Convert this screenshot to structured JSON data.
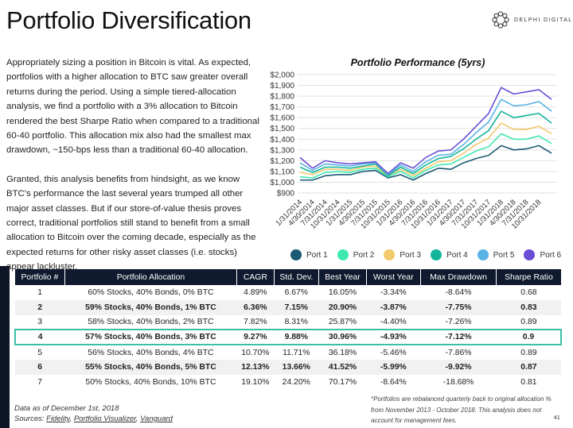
{
  "title": "Portfolio Diversification",
  "logo": {
    "text": "DELPHI DIGITAL"
  },
  "body": {
    "p1": "Appropriately sizing a position in Bitcoin is vital. As expected, portfolios with a higher allocation to BTC saw greater overall returns during the period. Using a simple tiered-allocation analysis, we find a portfolio with a 3% allocation to Bitcoin rendered the best Sharpe Ratio when compared to a traditional 60-40 portfolio. This allocation mix also had the smallest max drawdown, ~150-bps less than a traditional 60-40 allocation.",
    "p2": "Granted, this analysis benefits from hindsight, as we know BTC's performance the last several years trumped all other major asset classes. But if our store-of-value thesis proves correct, traditional portfolios still stand to benefit from a small allocation to Bitcoin over the coming decade, especially as the expected returns for other risky asset classes (i.e. stocks) appear lackluster."
  },
  "chart_data": {
    "type": "line",
    "title": "Portfolio Performance (5yrs)",
    "ylim": [
      900,
      2000
    ],
    "yticks": [
      "$2,000",
      "$1,900",
      "$1,800",
      "$1,700",
      "$1,600",
      "$1,500",
      "$1,400",
      "$1,300",
      "$1,200",
      "$1,100",
      "$1,000",
      "$900"
    ],
    "ytick_values": [
      2000,
      1900,
      1800,
      1700,
      1600,
      1500,
      1400,
      1300,
      1200,
      1100,
      1000,
      900
    ],
    "grid": true,
    "legend": "bottom",
    "x": [
      "1/31/2014",
      "4/30/2014",
      "7/31/2014",
      "10/31/2014",
      "1/31/2015",
      "4/30/2015",
      "7/31/2015",
      "10/31/2015",
      "1/31/2016",
      "4/30/2016",
      "7/31/2016",
      "10/31/2016",
      "1/31/2017",
      "4/30/2017",
      "7/31/2017",
      "10/31/2017",
      "1/31/2018",
      "4/30/2018",
      "7/31/2018",
      "10/31/2018",
      "11/30/2018"
    ],
    "xtick_labels": [
      "1/31/2014",
      "4/30/2014",
      "7/31/2014",
      "10/31/2014",
      "1/31/2015",
      "4/30/2015",
      "7/31/2015",
      "10/31/2015",
      "1/31/2016",
      "4/30/2016",
      "7/31/2016",
      "10/31/2016",
      "1/31/2017",
      "4/30/2017",
      "7/31/2017",
      "10/31/2017",
      "1/31/2018",
      "4/30/2018",
      "7/31/2018",
      "10/31/2018"
    ],
    "series": [
      {
        "name": "Port 1",
        "color": "#1b5a73",
        "values": [
          1020,
          1020,
          1060,
          1070,
          1070,
          1100,
          1110,
          1040,
          1070,
          1020,
          1080,
          1130,
          1120,
          1180,
          1220,
          1250,
          1340,
          1300,
          1310,
          1340,
          1270
        ]
      },
      {
        "name": "Port 2",
        "color": "#3ee8b0",
        "values": [
          1050,
          1040,
          1090,
          1100,
          1090,
          1120,
          1130,
          1050,
          1100,
          1040,
          1110,
          1160,
          1170,
          1230,
          1290,
          1330,
          1450,
          1400,
          1400,
          1430,
          1360
        ]
      },
      {
        "name": "Port 3",
        "color": "#f2c96b",
        "values": [
          1090,
          1070,
          1120,
          1120,
          1110,
          1140,
          1150,
          1060,
          1120,
          1060,
          1130,
          1190,
          1200,
          1270,
          1350,
          1410,
          1550,
          1490,
          1490,
          1520,
          1450
        ]
      },
      {
        "name": "Port 4",
        "color": "#12b59a",
        "values": [
          1140,
          1090,
          1140,
          1140,
          1130,
          1150,
          1170,
          1060,
          1140,
          1080,
          1160,
          1220,
          1240,
          1310,
          1400,
          1480,
          1660,
          1600,
          1620,
          1640,
          1550
        ]
      },
      {
        "name": "Port 5",
        "color": "#5ab3e6",
        "values": [
          1180,
          1110,
          1170,
          1160,
          1150,
          1170,
          1180,
          1070,
          1160,
          1100,
          1190,
          1250,
          1260,
          1350,
          1460,
          1560,
          1770,
          1710,
          1720,
          1750,
          1660
        ]
      },
      {
        "name": "Port 6",
        "color": "#6a4ed6",
        "values": [
          1230,
          1130,
          1200,
          1180,
          1170,
          1180,
          1190,
          1080,
          1180,
          1130,
          1230,
          1290,
          1300,
          1400,
          1520,
          1640,
          1880,
          1820,
          1840,
          1860,
          1770
        ]
      }
    ]
  },
  "table": {
    "headers": [
      "Portfolio #",
      "Portfolio Allocation",
      "CAGR",
      "Std. Dev.",
      "Best Year",
      "Worst Year",
      "Max Drawdown",
      "Sharpe Ratio"
    ],
    "rows": [
      [
        "1",
        "60% Stocks, 40% Bonds, 0% BTC",
        "4.89%",
        "6.67%",
        "16.05%",
        "-3.34%",
        "-8.64%",
        "0.68"
      ],
      [
        "2",
        "59% Stocks, 40% Bonds, 1% BTC",
        "6.36%",
        "7.15%",
        "20.90%",
        "-3.87%",
        "-7.75%",
        "0.83"
      ],
      [
        "3",
        "58% Stocks, 40% Bonds, 2% BTC",
        "7.82%",
        "8.31%",
        "25.87%",
        "-4.40%",
        "-7.26%",
        "0.89"
      ],
      [
        "4",
        "57% Stocks, 40% Bonds, 3% BTC",
        "9.27%",
        "9.88%",
        "30.96%",
        "-4.93%",
        "-7.12%",
        "0.9"
      ],
      [
        "5",
        "56% Stocks, 40% Bonds, 4% BTC",
        "10.70%",
        "11.71%",
        "36.18%",
        "-5.46%",
        "-7.86%",
        "0.89"
      ],
      [
        "6",
        "55% Stocks, 40% Bonds, 5% BTC",
        "12.13%",
        "13.66%",
        "41.52%",
        "-5.99%",
        "-9.92%",
        "0.87"
      ],
      [
        "7",
        "50% Stocks, 40% Bonds, 10% BTC",
        "19.10%",
        "24.20%",
        "70.17%",
        "-8.64%",
        "-18.68%",
        "0.81"
      ]
    ],
    "highlight_color": "#3ac0a8"
  },
  "footer": {
    "note": "*Portfolios are rebalanced quarterly back to original allocation % from November 2013 - October 2018. This analysis does not account for management fees.",
    "as_of": "Data as of December 1st, 2018",
    "sources_label": "Sources: ",
    "sources": [
      "Fidelity",
      "Portfolio Visualizer",
      "Vanguard"
    ],
    "page": "41"
  }
}
